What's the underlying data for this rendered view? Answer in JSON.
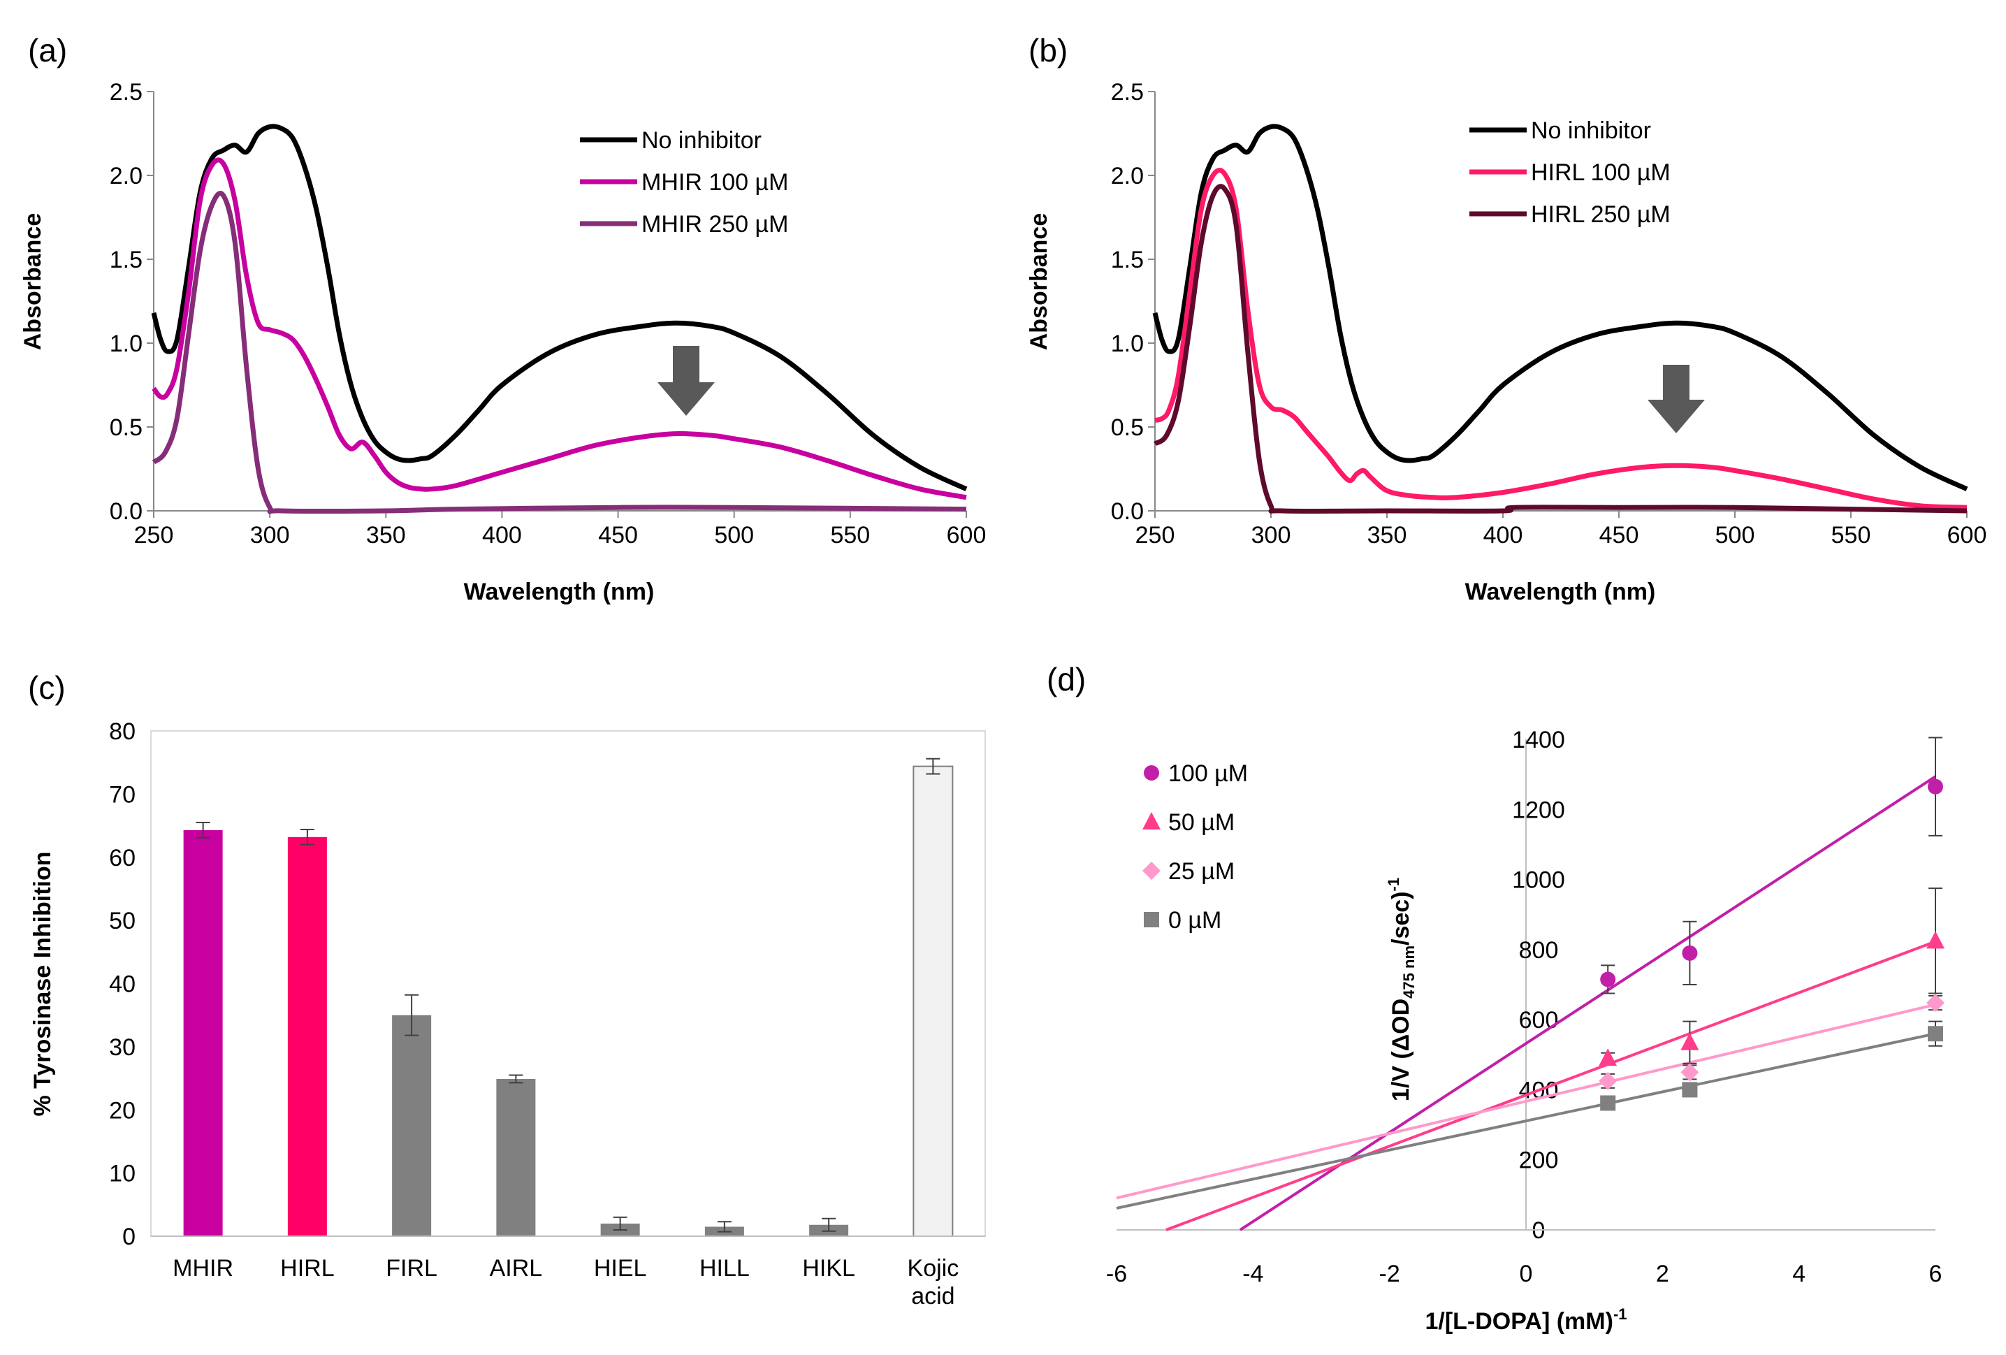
{
  "chart_data": [
    {
      "id": "a",
      "type": "line",
      "panel_label": "(a)",
      "xlabel": "Wavelength (nm)",
      "ylabel": "Absorbance",
      "xlim": [
        250,
        600
      ],
      "ylim": [
        0,
        2.5
      ],
      "xticks": [
        250,
        300,
        350,
        400,
        450,
        500,
        550,
        600
      ],
      "yticks": [
        "0.0",
        "0.5",
        "1.0",
        "1.5",
        "2.0",
        "2.5"
      ],
      "series": [
        {
          "name": "No inhibitor",
          "color": "#000000",
          "points": [
            [
              250,
              1.18
            ],
            [
              253,
              1.02
            ],
            [
              256,
              0.95
            ],
            [
              260,
              1.02
            ],
            [
              265,
              1.45
            ],
            [
              270,
              1.9
            ],
            [
              275,
              2.1
            ],
            [
              280,
              2.15
            ],
            [
              285,
              2.18
            ],
            [
              290,
              2.14
            ],
            [
              295,
              2.25
            ],
            [
              300,
              2.29
            ],
            [
              305,
              2.28
            ],
            [
              310,
              2.22
            ],
            [
              315,
              2.05
            ],
            [
              320,
              1.8
            ],
            [
              325,
              1.45
            ],
            [
              330,
              1.05
            ],
            [
              335,
              0.75
            ],
            [
              340,
              0.55
            ],
            [
              345,
              0.42
            ],
            [
              350,
              0.35
            ],
            [
              355,
              0.31
            ],
            [
              360,
              0.3
            ],
            [
              365,
              0.31
            ],
            [
              370,
              0.33
            ],
            [
              380,
              0.45
            ],
            [
              390,
              0.6
            ],
            [
              400,
              0.75
            ],
            [
              420,
              0.94
            ],
            [
              440,
              1.05
            ],
            [
              460,
              1.1
            ],
            [
              475,
              1.12
            ],
            [
              490,
              1.1
            ],
            [
              500,
              1.06
            ],
            [
              520,
              0.92
            ],
            [
              540,
              0.7
            ],
            [
              560,
              0.45
            ],
            [
              580,
              0.26
            ],
            [
              600,
              0.13
            ]
          ]
        },
        {
          "name": "MHIR 100 µM",
          "color": "#c8009f",
          "points": [
            [
              250,
              0.73
            ],
            [
              253,
              0.68
            ],
            [
              256,
              0.7
            ],
            [
              260,
              0.85
            ],
            [
              265,
              1.3
            ],
            [
              270,
              1.85
            ],
            [
              275,
              2.06
            ],
            [
              280,
              2.07
            ],
            [
              285,
              1.85
            ],
            [
              290,
              1.4
            ],
            [
              295,
              1.12
            ],
            [
              300,
              1.08
            ],
            [
              305,
              1.06
            ],
            [
              310,
              1.02
            ],
            [
              315,
              0.92
            ],
            [
              320,
              0.78
            ],
            [
              325,
              0.62
            ],
            [
              330,
              0.45
            ],
            [
              335,
              0.37
            ],
            [
              340,
              0.41
            ],
            [
              345,
              0.33
            ],
            [
              350,
              0.23
            ],
            [
              355,
              0.17
            ],
            [
              360,
              0.14
            ],
            [
              365,
              0.13
            ],
            [
              370,
              0.13
            ],
            [
              380,
              0.15
            ],
            [
              400,
              0.23
            ],
            [
              420,
              0.31
            ],
            [
              440,
              0.39
            ],
            [
              460,
              0.44
            ],
            [
              475,
              0.46
            ],
            [
              490,
              0.45
            ],
            [
              500,
              0.43
            ],
            [
              520,
              0.38
            ],
            [
              540,
              0.3
            ],
            [
              560,
              0.21
            ],
            [
              580,
              0.13
            ],
            [
              600,
              0.08
            ]
          ]
        },
        {
          "name": "MHIR 250 µM",
          "color": "#862d78",
          "points": [
            [
              250,
              0.29
            ],
            [
              255,
              0.35
            ],
            [
              260,
              0.55
            ],
            [
              265,
              1.05
            ],
            [
              270,
              1.55
            ],
            [
              275,
              1.82
            ],
            [
              280,
              1.88
            ],
            [
              285,
              1.6
            ],
            [
              290,
              0.85
            ],
            [
              295,
              0.25
            ],
            [
              300,
              0.02
            ],
            [
              305,
              0.0
            ],
            [
              350,
              0.0
            ],
            [
              380,
              0.01
            ],
            [
              450,
              0.02
            ],
            [
              500,
              0.02
            ],
            [
              600,
              0.01
            ]
          ]
        }
      ],
      "legend_position": "top-right",
      "annotation": "down-arrow"
    },
    {
      "id": "b",
      "type": "line",
      "panel_label": "(b)",
      "xlabel": "Wavelength (nm)",
      "ylabel": "Absorbance",
      "xlim": [
        250,
        600
      ],
      "ylim": [
        0,
        2.5
      ],
      "xticks": [
        250,
        300,
        350,
        400,
        450,
        500,
        550,
        600
      ],
      "yticks": [
        "0.0",
        "0.5",
        "1.0",
        "1.5",
        "2.0",
        "2.5"
      ],
      "series": [
        {
          "name": "No inhibitor",
          "color": "#000000",
          "points": [
            [
              250,
              1.18
            ],
            [
              253,
              1.02
            ],
            [
              256,
              0.95
            ],
            [
              260,
              1.02
            ],
            [
              265,
              1.45
            ],
            [
              270,
              1.9
            ],
            [
              275,
              2.1
            ],
            [
              280,
              2.15
            ],
            [
              285,
              2.18
            ],
            [
              290,
              2.14
            ],
            [
              295,
              2.25
            ],
            [
              300,
              2.29
            ],
            [
              305,
              2.28
            ],
            [
              310,
              2.22
            ],
            [
              315,
              2.05
            ],
            [
              320,
              1.8
            ],
            [
              325,
              1.45
            ],
            [
              330,
              1.05
            ],
            [
              335,
              0.75
            ],
            [
              340,
              0.55
            ],
            [
              345,
              0.42
            ],
            [
              350,
              0.35
            ],
            [
              355,
              0.31
            ],
            [
              360,
              0.3
            ],
            [
              365,
              0.31
            ],
            [
              370,
              0.33
            ],
            [
              380,
              0.45
            ],
            [
              390,
              0.6
            ],
            [
              400,
              0.75
            ],
            [
              420,
              0.94
            ],
            [
              440,
              1.05
            ],
            [
              460,
              1.1
            ],
            [
              475,
              1.12
            ],
            [
              490,
              1.1
            ],
            [
              500,
              1.06
            ],
            [
              520,
              0.92
            ],
            [
              540,
              0.7
            ],
            [
              560,
              0.45
            ],
            [
              580,
              0.26
            ],
            [
              600,
              0.13
            ]
          ]
        },
        {
          "name": "HIRL 100 µM",
          "color": "#ff1a66",
          "points": [
            [
              250,
              0.54
            ],
            [
              253,
              0.55
            ],
            [
              256,
              0.6
            ],
            [
              260,
              0.8
            ],
            [
              265,
              1.3
            ],
            [
              270,
              1.8
            ],
            [
              275,
              2.0
            ],
            [
              280,
              2.01
            ],
            [
              285,
              1.8
            ],
            [
              290,
              1.2
            ],
            [
              295,
              0.75
            ],
            [
              300,
              0.62
            ],
            [
              305,
              0.6
            ],
            [
              310,
              0.56
            ],
            [
              315,
              0.48
            ],
            [
              320,
              0.4
            ],
            [
              325,
              0.32
            ],
            [
              330,
              0.23
            ],
            [
              334,
              0.18
            ],
            [
              337,
              0.22
            ],
            [
              340,
              0.24
            ],
            [
              343,
              0.2
            ],
            [
              350,
              0.12
            ],
            [
              360,
              0.09
            ],
            [
              370,
              0.08
            ],
            [
              380,
              0.08
            ],
            [
              400,
              0.11
            ],
            [
              420,
              0.16
            ],
            [
              440,
              0.22
            ],
            [
              460,
              0.26
            ],
            [
              475,
              0.27
            ],
            [
              490,
              0.26
            ],
            [
              500,
              0.24
            ],
            [
              520,
              0.19
            ],
            [
              540,
              0.13
            ],
            [
              560,
              0.07
            ],
            [
              580,
              0.03
            ],
            [
              600,
              0.02
            ]
          ]
        },
        {
          "name": "HIRL 250 µM",
          "color": "#5e0a2c",
          "points": [
            [
              250,
              0.4
            ],
            [
              255,
              0.45
            ],
            [
              260,
              0.65
            ],
            [
              265,
              1.1
            ],
            [
              270,
              1.6
            ],
            [
              275,
              1.88
            ],
            [
              280,
              1.92
            ],
            [
              285,
              1.7
            ],
            [
              290,
              0.95
            ],
            [
              295,
              0.3
            ],
            [
              300,
              0.03
            ],
            [
              305,
              0.0
            ],
            [
              350,
              0.0
            ],
            [
              400,
              0.0
            ],
            [
              405,
              0.02
            ],
            [
              450,
              0.02
            ],
            [
              500,
              0.02
            ],
            [
              550,
              0.01
            ],
            [
              600,
              0.0
            ]
          ]
        }
      ],
      "legend_position": "top-right",
      "annotation": "down-arrow"
    },
    {
      "id": "c",
      "type": "bar",
      "panel_label": "(c)",
      "ylabel": "% Tyrosinase Inhibition",
      "ylim": [
        0,
        80
      ],
      "yticks": [
        0,
        10,
        20,
        30,
        40,
        50,
        60,
        70,
        80
      ],
      "categories": [
        [
          "MHIR"
        ],
        [
          "HIRL"
        ],
        [
          "FIRL"
        ],
        [
          "AIRL"
        ],
        [
          "HIEL"
        ],
        [
          "HILL"
        ],
        [
          "HIKL"
        ],
        [
          "Kojic",
          "acid"
        ]
      ],
      "values": [
        64.3,
        63.2,
        35.0,
        24.9,
        2.0,
        1.5,
        1.8,
        74.4
      ],
      "errors": [
        1.2,
        1.2,
        3.2,
        0.6,
        1.0,
        0.8,
        1.0,
        1.2
      ],
      "colors": [
        "#c8009f",
        "#ff0066",
        "#808080",
        "#808080",
        "#808080",
        "#808080",
        "#808080",
        "#f2f2f2"
      ]
    },
    {
      "id": "d",
      "type": "scatter",
      "panel_label": "(d)",
      "xlabel": "1/[L-DOPA] (mM)",
      "xlabel_sup": "-1",
      "ylabel_main": "1/V (ΔOD",
      "ylabel_sub": "475 nm",
      "ylabel_tail": "/sec)",
      "ylabel_sup": "-1",
      "xlim": [
        -6,
        6
      ],
      "ylim": [
        0,
        1400
      ],
      "xticks": [
        "-6",
        "-4",
        "-2",
        "0",
        "2",
        "4",
        "6"
      ],
      "yticks": [
        "0",
        "200",
        "400",
        "600",
        "800",
        "1000",
        "1200",
        "1400"
      ],
      "series": [
        {
          "name": "100 µM",
          "color": "#c21fa8",
          "marker": "circle",
          "x": [
            1.2,
            2.4,
            6.0
          ],
          "y": [
            715,
            790,
            1265
          ],
          "err": [
            40,
            90,
            140
          ],
          "fit": [
            127,
            532
          ]
        },
        {
          "name": "50 µM",
          "color": "#ff3d8b",
          "marker": "triangle",
          "x": [
            1.2,
            2.4,
            6.0
          ],
          "y": [
            490,
            535,
            825
          ],
          "err": [
            15,
            60,
            150
          ],
          "fit": [
            73,
            385
          ]
        },
        {
          "name": "25 µM",
          "color": "#ff99cc",
          "marker": "diamond",
          "x": [
            1.2,
            2.4,
            6.0
          ],
          "y": [
            425,
            450,
            648
          ],
          "err": [
            20,
            20,
            20
          ],
          "fit": [
            46,
            367
          ]
        },
        {
          "name": "0 µM",
          "color": "#808080",
          "marker": "square",
          "x": [
            1.2,
            2.4,
            6.0
          ],
          "y": [
            362,
            400,
            560
          ],
          "err": [
            10,
            15,
            35
          ],
          "fit": [
            41.5,
            311
          ]
        }
      ],
      "legend_position": "left"
    }
  ]
}
